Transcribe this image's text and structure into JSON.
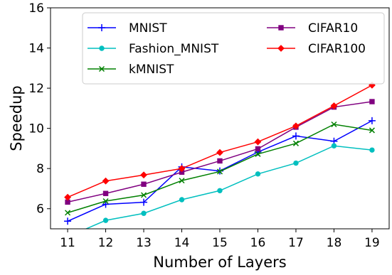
{
  "chart_data": {
    "type": "line",
    "xlabel": "Number of Layers",
    "ylabel": "Speedup",
    "x": [
      11,
      12,
      13,
      14,
      15,
      16,
      17,
      18,
      19
    ],
    "xlim": [
      10.55,
      19.45
    ],
    "ylim": [
      5,
      16
    ],
    "xticks": [
      11,
      12,
      13,
      14,
      15,
      16,
      17,
      18,
      19
    ],
    "yticks": [
      6,
      8,
      10,
      12,
      14,
      16
    ],
    "grid": false,
    "legend_position": "top-right",
    "legend_columns": 2,
    "series": [
      {
        "name": "MNIST",
        "color": "#0000ff",
        "marker": "plus",
        "values": [
          5.38,
          6.22,
          6.32,
          8.08,
          7.88,
          8.82,
          9.62,
          9.36,
          10.38
        ]
      },
      {
        "name": "Fashion_MNIST",
        "color": "#00bfbf",
        "marker": "circle",
        "values": [
          4.6,
          5.42,
          5.77,
          6.45,
          6.9,
          7.73,
          8.27,
          9.13,
          8.92
        ]
      },
      {
        "name": "kMNIST",
        "color": "#008000",
        "marker": "x",
        "values": [
          5.8,
          6.38,
          6.68,
          7.4,
          7.85,
          8.72,
          9.25,
          10.2,
          9.9
        ]
      },
      {
        "name": "CIFAR10",
        "color": "#800080",
        "marker": "square",
        "values": [
          6.33,
          6.76,
          7.22,
          7.82,
          8.38,
          8.98,
          10.06,
          11.06,
          11.33
        ]
      },
      {
        "name": "CIFAR100",
        "color": "#ff0000",
        "marker": "diamond",
        "values": [
          6.57,
          7.38,
          7.68,
          8.0,
          8.8,
          9.33,
          10.12,
          11.12,
          12.15
        ]
      }
    ]
  }
}
